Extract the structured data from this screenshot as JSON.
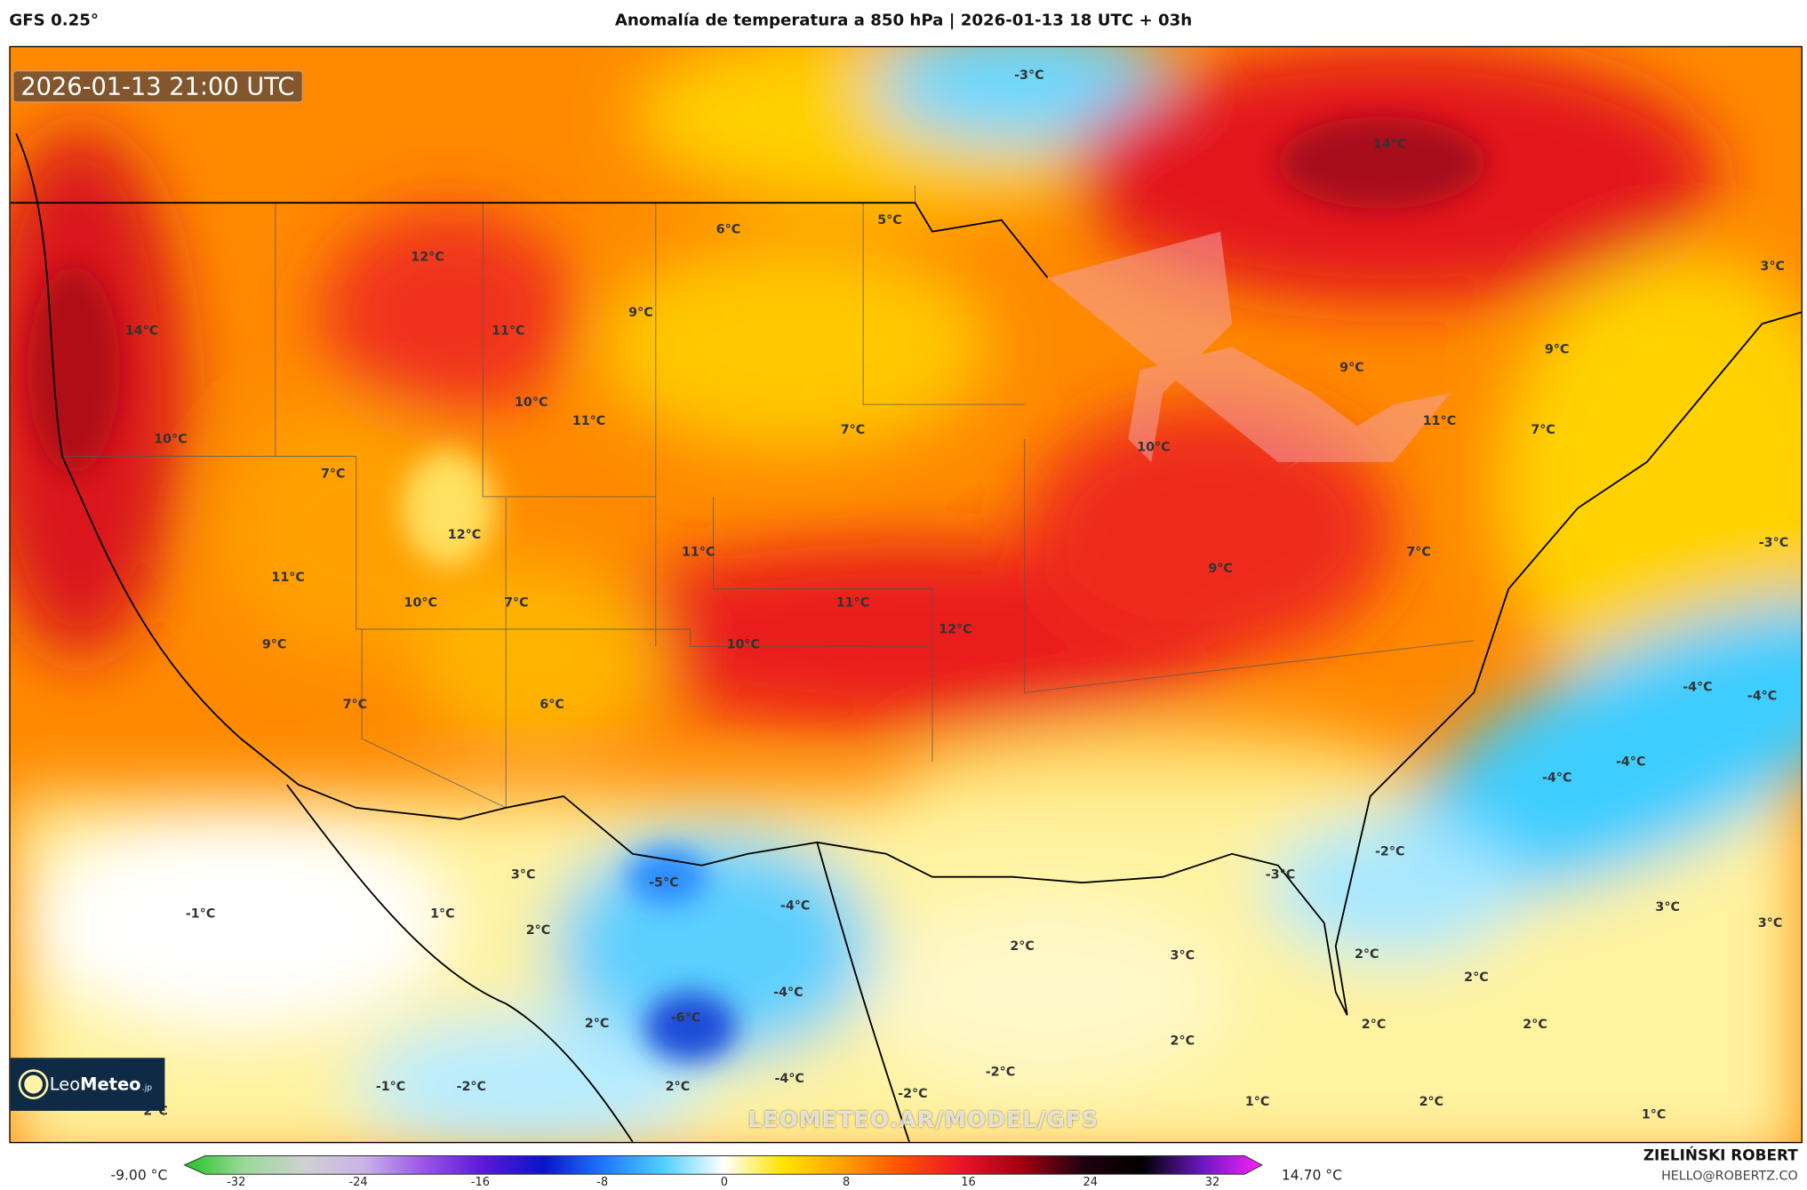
{
  "header": {
    "model": "GFS 0.25°",
    "title": "Anomalía de temperatura a 850 hPa | 2026-01-13 18 UTC + 03h"
  },
  "map": {
    "valid_time": "2026-01-13 21:00 UTC",
    "watermark": "LEOMETEO.AR/MODEL/GFS",
    "logo": {
      "light": "Leo",
      "bold": "Meteo",
      "suffix": ".jp"
    },
    "labels": [
      "-3°C",
      "14°C",
      "3°C",
      "6°C",
      "5°C",
      "12°C",
      "9°C",
      "14°C",
      "11°C",
      "10°C",
      "11°C",
      "10°C",
      "7°C",
      "9°C",
      "9°C",
      "11°C",
      "7°C",
      "10°C",
      "7°C",
      "12°C",
      "11°C",
      "11°C",
      "10°C",
      "7°C",
      "11°C",
      "9°C",
      "7°C",
      "-3°C",
      "12°C",
      "9°C",
      "10°C",
      "7°C",
      "6°C",
      "-4°C",
      "-4°C",
      "-4°C",
      "-4°C",
      "-2°C",
      "3°C",
      "-5°C",
      "-4°C",
      "-3°C",
      "-1°C",
      "1°C",
      "2°C",
      "3°C",
      "3°C",
      "2°C",
      "3°C",
      "2°C",
      "2°C",
      "-4°C",
      "2°C",
      "-6°C",
      "2°C",
      "2°C",
      "2°C",
      "-2°C",
      "-4°C",
      "-1°C",
      "-2°C",
      "2°C",
      "-2°C",
      "1°C",
      "2°C",
      "1°C",
      "2°C"
    ]
  },
  "colorbar": {
    "min_label": "-9.00 °C",
    "max_label": "14.70 °C",
    "ticks": [
      "-32",
      "-24",
      "-16",
      "-8",
      "0",
      "8",
      "16",
      "24",
      "32"
    ],
    "colors": [
      "#22c322",
      "#9ad99a",
      "#d0d0d0",
      "#c9b3e8",
      "#9a55e6",
      "#5a18d8",
      "#0a14c8",
      "#1e78ff",
      "#4fd0ff",
      "#ffffff",
      "#ffe400",
      "#ffa000",
      "#ff5000",
      "#e8142a",
      "#a00010",
      "#200010",
      "#000000",
      "#6a18c0",
      "#ff20ff"
    ]
  },
  "credit": {
    "author": "ZIELIŃSKI ROBERT",
    "email": "HELLO@ROBERTZ.CO"
  }
}
